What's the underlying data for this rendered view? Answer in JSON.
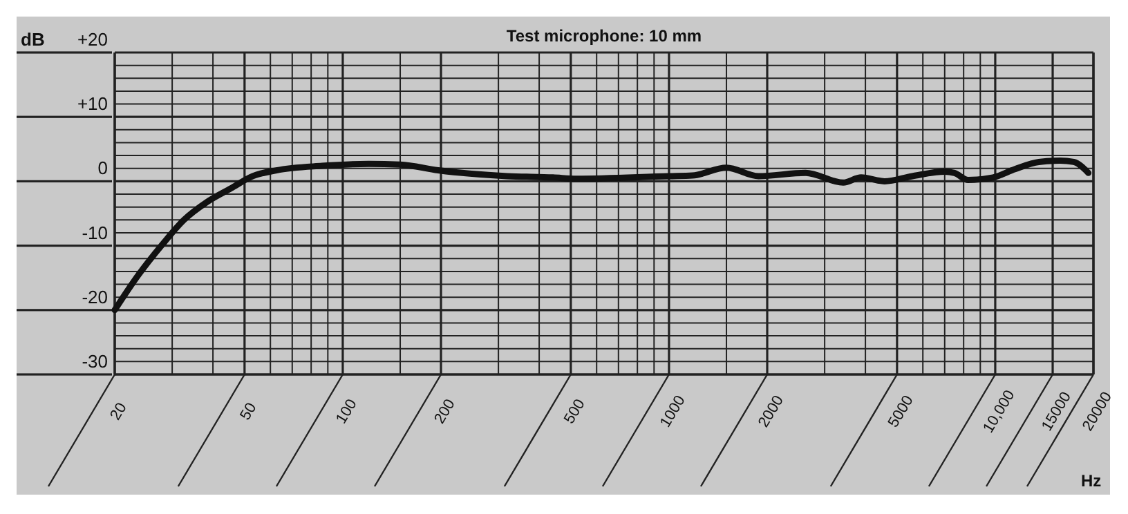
{
  "chart_data": {
    "type": "line",
    "title": "Test microphone: 10 mm",
    "xlabel": "Hz",
    "ylabel": "dB",
    "log": "x",
    "grid": true,
    "xlim": [
      20,
      20000
    ],
    "ylim": [
      -30,
      20
    ],
    "xticks": [
      20,
      {
        "value": 30,
        "label": null
      },
      {
        "value": 40,
        "label": null
      },
      50,
      {
        "value": 60,
        "label": null
      },
      {
        "value": 70,
        "label": null
      },
      {
        "value": 80,
        "label": null
      },
      {
        "value": 90,
        "label": null
      },
      100,
      {
        "value": 150,
        "label": null
      },
      200,
      {
        "value": 300,
        "label": null
      },
      {
        "value": 400,
        "label": null
      },
      500,
      {
        "value": 600,
        "label": null
      },
      {
        "value": 700,
        "label": null
      },
      {
        "value": 800,
        "label": null
      },
      {
        "value": 900,
        "label": null
      },
      1000,
      {
        "value": 1500,
        "label": null
      },
      2000,
      {
        "value": 3000,
        "label": null
      },
      {
        "value": 4000,
        "label": null
      },
      5000,
      {
        "value": 6000,
        "label": null
      },
      {
        "value": 7000,
        "label": null
      },
      {
        "value": 8000,
        "label": null
      },
      {
        "value": 9000,
        "label": null
      },
      {
        "value": 10000,
        "label": "10,000"
      },
      15000,
      20000
    ],
    "yticks": [
      -30,
      {
        "value": -28,
        "label": null
      },
      {
        "value": -26,
        "label": null
      },
      {
        "value": -24,
        "label": null
      },
      {
        "value": -22,
        "label": null
      },
      -20,
      {
        "value": -18,
        "label": null
      },
      {
        "value": -16,
        "label": null
      },
      {
        "value": -14,
        "label": null
      },
      {
        "value": -12,
        "label": null
      },
      -10,
      {
        "value": -8,
        "label": null
      },
      {
        "value": -6,
        "label": null
      },
      {
        "value": -4,
        "label": null
      },
      {
        "value": -2,
        "label": null
      },
      0,
      {
        "value": 2,
        "label": null
      },
      {
        "value": 4,
        "label": null
      },
      {
        "value": 6,
        "label": null
      },
      {
        "value": 8,
        "label": null
      },
      {
        "value": 10,
        "label": "+10"
      },
      {
        "value": 12,
        "label": null
      },
      {
        "value": 14,
        "label": null
      },
      {
        "value": 16,
        "label": null
      },
      {
        "value": 18,
        "label": null
      },
      {
        "value": 20,
        "label": "+20"
      }
    ],
    "x": [
      20,
      23.6,
      27.9,
      32.6,
      38.4,
      45.4,
      53,
      62.6,
      86.5,
      120,
      150,
      196,
      319,
      441,
      520,
      1000,
      1180,
      1500,
      1880,
      2620,
      3420,
      3880,
      4580,
      5570,
      6980,
      7500,
      8250,
      9850,
      11500,
      13600,
      15800,
      17400,
      19300
    ],
    "series": [
      {
        "color": "#111111",
        "line_style": "solid",
        "marker": "none",
        "values": [
          -20,
          -14.6,
          -9.9,
          -6,
          -3.2,
          -1.1,
          0.8,
          1.7,
          2.4,
          2.7,
          2.6,
          1.7,
          0.8,
          0.6,
          0.4,
          0.8,
          0.9,
          2.1,
          0.8,
          1.3,
          -0.2,
          0.6,
          0,
          0.8,
          1.5,
          1.3,
          0.2,
          0.6,
          1.9,
          3,
          3.2,
          3,
          1.3
        ]
      }
    ]
  }
}
